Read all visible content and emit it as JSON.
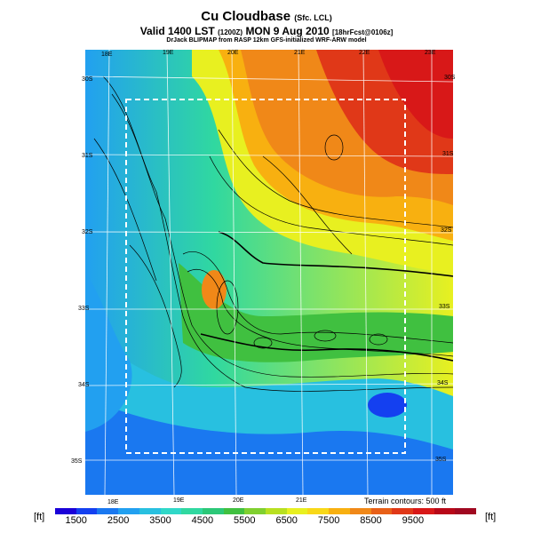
{
  "header": {
    "title": "Cu Cloudbase",
    "title_suffix": "(Sfc. LCL)",
    "valid": "Valid 1400 LST",
    "valid_small": "(1200Z)",
    "valid_date": "MON 9 Aug 2010",
    "forecast": "[18hrFcst@0106z]",
    "credit": "DrJack BLIPMAP from RASP 12km GFS-initialized WRF-ARW model"
  },
  "map": {
    "lon_labels_top": [
      "18E",
      "19E",
      "20E",
      "21E",
      "22E",
      "23E"
    ],
    "lon_labels_bottom": [
      "18E",
      "19E",
      "20E",
      "21E"
    ],
    "lat_labels_left": [
      "30S",
      "31S",
      "32S",
      "33S",
      "34S",
      "35S"
    ],
    "lat_labels_right": [
      "30S",
      "31S",
      "32S",
      "33S",
      "34S",
      "35S"
    ],
    "terrain_note": "Terrain contours: 500 ft"
  },
  "colorbar": {
    "unit_left": "[ft]",
    "unit_right": "[ft]",
    "tick_labels": [
      "1500",
      "2500",
      "3500",
      "4500",
      "5500",
      "6500",
      "7500",
      "8500",
      "9500"
    ],
    "colors": [
      "#1a00d8",
      "#1440f0",
      "#1a78f0",
      "#22a0f0",
      "#28c0e0",
      "#30d8c8",
      "#30d8a0",
      "#2cc878",
      "#40c040",
      "#80d030",
      "#b8e020",
      "#e8f020",
      "#f8d818",
      "#f8b010",
      "#f08818",
      "#e86018",
      "#e03818",
      "#d81818",
      "#b80818",
      "#a00820"
    ]
  }
}
